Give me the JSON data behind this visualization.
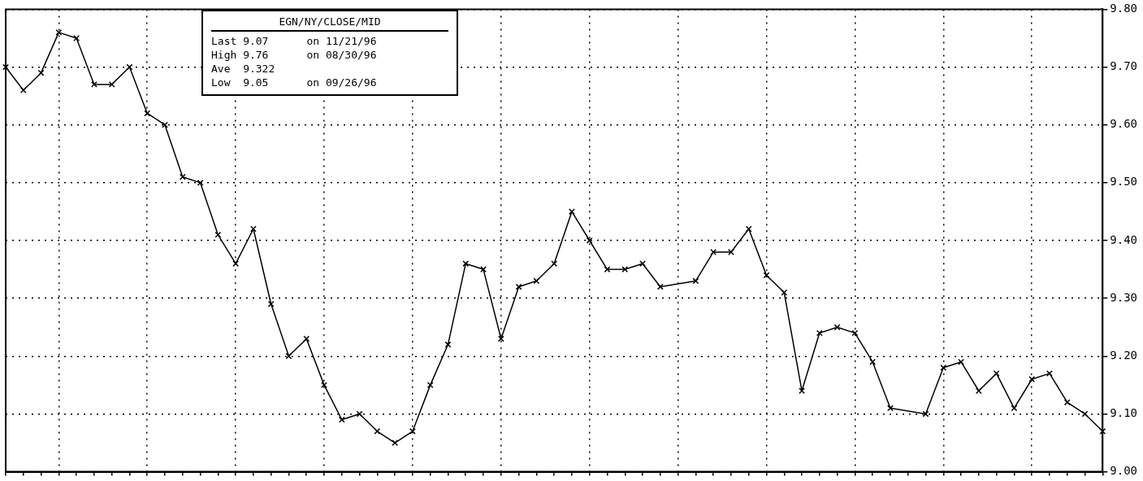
{
  "chart_data": {
    "type": "line",
    "title": "EGN/NY/CLOSE/MID",
    "annotations": [
      "Last 9.07      on 11/21/96",
      "High 9.76      on 08/30/96",
      "Ave  9.322",
      "Low  9.05      on 09/26/96"
    ],
    "categories": [
      null,
      null,
      null,
      null,
      null,
      null,
      null,
      null,
      null,
      null,
      null,
      null,
      null,
      null,
      null,
      null,
      null,
      null,
      null,
      null,
      null,
      null,
      null,
      null,
      null,
      null,
      null,
      null,
      null,
      null,
      null,
      null,
      null,
      null,
      null,
      null,
      null,
      null,
      null,
      null,
      null,
      null,
      null,
      null,
      null,
      null,
      null,
      null,
      null,
      null,
      null,
      null,
      null,
      null,
      null,
      null,
      null,
      null,
      null,
      null,
      null,
      null,
      null
    ],
    "series": [
      {
        "color": "#000000",
        "values": [
          9.7,
          9.66,
          9.69,
          9.76,
          9.75,
          9.67,
          9.67,
          9.7,
          9.62,
          9.6,
          9.51,
          9.5,
          9.41,
          9.36,
          9.42,
          9.29,
          9.2,
          9.23,
          9.15,
          9.09,
          9.1,
          9.07,
          9.05,
          9.07,
          9.15,
          9.22,
          9.36,
          9.35,
          9.23,
          9.32,
          9.33,
          9.36,
          9.45,
          9.4,
          9.35,
          9.35,
          9.36,
          9.32,
          null,
          9.33,
          9.38,
          9.38,
          9.42,
          9.34,
          9.31,
          9.14,
          9.24,
          9.25,
          9.24,
          9.19,
          9.11,
          null,
          9.1,
          9.18,
          9.19,
          9.14,
          9.17,
          9.11,
          9.16,
          9.17,
          9.12,
          9.1,
          9.07
        ]
      }
    ],
    "ylim": [
      9.0,
      9.8
    ],
    "yticks": [
      {
        "value": 9.0,
        "label": "9.00"
      },
      {
        "value": 9.1,
        "label": "9.10"
      },
      {
        "value": 9.2,
        "label": "9.20"
      },
      {
        "value": 9.3,
        "label": "9.30"
      },
      {
        "value": 9.4,
        "label": "9.40"
      },
      {
        "value": 9.5,
        "label": "9.50"
      },
      {
        "value": 9.6,
        "label": "9.60"
      },
      {
        "value": 9.7,
        "label": "9.70"
      },
      {
        "value": 9.8,
        "label": "9.80"
      }
    ],
    "grid": true,
    "legend": false,
    "marker": "cross",
    "line_style": "solid",
    "tick_labels": "y"
  }
}
